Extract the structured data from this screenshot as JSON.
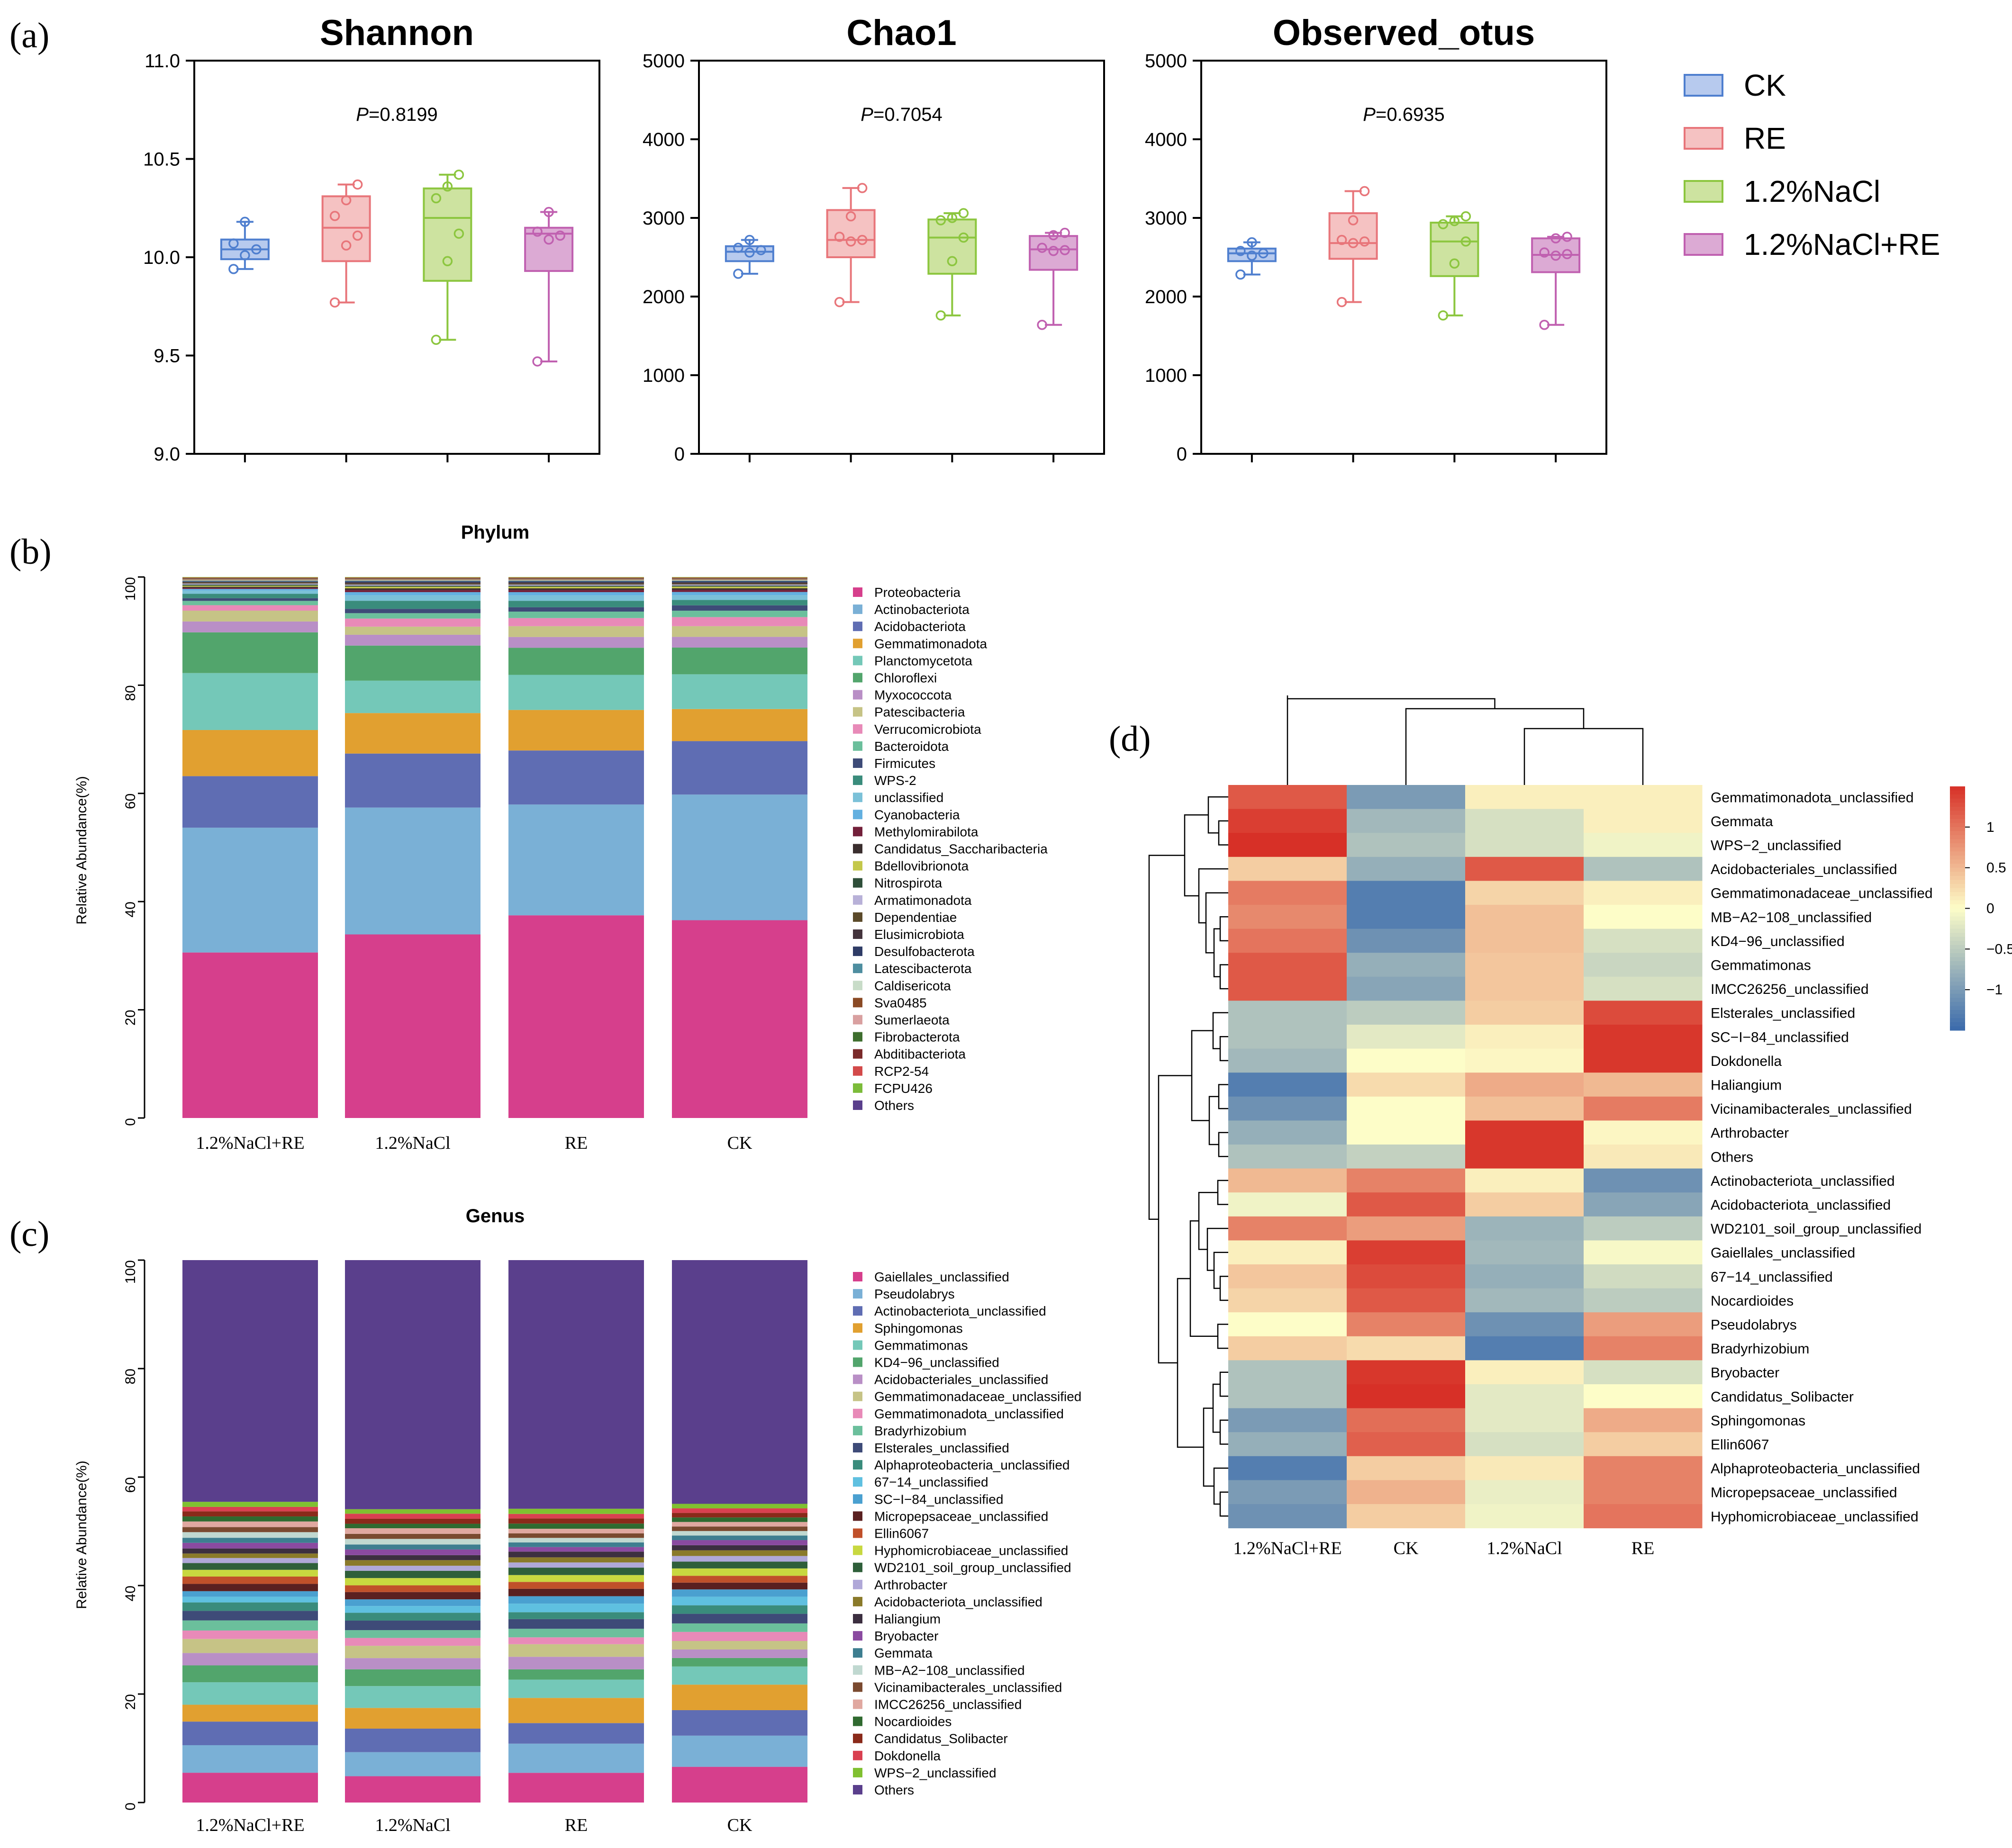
{
  "colors": {
    "groups": {
      "CK": "#4f7fcf",
      "RE": "#e8757a",
      "NaCl": "#8cc63f",
      "NaClRE": "#c060b0"
    },
    "groups_fill": {
      "CK": "#b7caee",
      "RE": "#f5c2c2",
      "NaCl": "#cde3a0",
      "NaClRE": "#dcaad4"
    },
    "phylum": [
      "#d63f8c",
      "#7ab0d6",
      "#5f6db3",
      "#e1a030",
      "#74c8b8",
      "#52a56c",
      "#b98fc6",
      "#c6c386",
      "#e88ab8",
      "#6bbf9c",
      "#3e4b78",
      "#3a8c7c",
      "#7bc1d8",
      "#63b0e0",
      "#73203a",
      "#3a2e2e",
      "#c4c84a",
      "#2f4f3a",
      "#b8b1d8",
      "#5b4a2a",
      "#44343d",
      "#2f3c66",
      "#4e8ea0",
      "#c8dcc8",
      "#8a4a25",
      "#d9a0a0",
      "#3e6e2e",
      "#7a2a2a",
      "#d34a4a",
      "#7cbc3a",
      "#5a3f8c"
    ],
    "genus": [
      "#d63f8c",
      "#7ab0d6",
      "#5f6db3",
      "#e1a030",
      "#74c8b8",
      "#52a56c",
      "#b98fc6",
      "#c6c386",
      "#e88ab8",
      "#6bbf9c",
      "#3e4b78",
      "#3a8c7c",
      "#5fc0e0",
      "#4aa0d0",
      "#5a2020",
      "#c0502a",
      "#c8d840",
      "#2f5f3a",
      "#b0a8d8",
      "#8a7a2a",
      "#3c2f40",
      "#8a4aa0",
      "#3e7e90",
      "#c0d8d0",
      "#7a4a30",
      "#e0a8a0",
      "#306a30",
      "#8a2a1a",
      "#d94050",
      "#80c030",
      "#5a3f8c"
    ],
    "heatmap": [
      "#3a6aac",
      "#fdfdc8",
      "#d73027"
    ]
  },
  "panel_a": {
    "label": "(a)",
    "p_prefix": "P",
    "groups": [
      "CK",
      "RE",
      "1.2%NaCl",
      "1.2%NaCl+RE"
    ],
    "legend": [
      "CK",
      "RE",
      "1.2%NaCl",
      "1.2%NaCl+RE"
    ],
    "charts": [
      {
        "title": "Shannon",
        "p_value": "=0.8199",
        "ylim": [
          9.0,
          11.0
        ],
        "yticks": [
          "9.0",
          "9.5",
          "10.0",
          "10.5",
          "11.0"
        ],
        "tick_values": [
          9.0,
          9.5,
          10.0,
          10.5,
          11.0
        ],
        "boxes": [
          {
            "min": 9.94,
            "q1": 9.99,
            "median": 10.04,
            "q3": 10.09,
            "max": 10.18,
            "points": [
              9.94,
              10.01,
              10.04,
              10.07,
              10.18
            ]
          },
          {
            "min": 9.77,
            "q1": 9.98,
            "median": 10.15,
            "q3": 10.31,
            "max": 10.37,
            "points": [
              9.77,
              10.06,
              10.11,
              10.21,
              10.29,
              10.37
            ]
          },
          {
            "min": 9.58,
            "q1": 9.88,
            "median": 10.2,
            "q3": 10.35,
            "max": 10.42,
            "points": [
              9.58,
              9.98,
              10.12,
              10.3,
              10.36,
              10.42
            ]
          },
          {
            "min": 9.47,
            "q1": 9.93,
            "median": 10.12,
            "q3": 10.15,
            "max": 10.23,
            "points": [
              9.47,
              10.09,
              10.11,
              10.13,
              10.23
            ]
          }
        ]
      },
      {
        "title": "Chao1",
        "p_value": "=0.7054",
        "ylim": [
          0,
          5000
        ],
        "yticks": [
          "0",
          "1000",
          "2000",
          "3000",
          "4000",
          "5000"
        ],
        "tick_values": [
          0,
          1000,
          2000,
          3000,
          4000,
          5000
        ],
        "boxes": [
          {
            "min": 2290,
            "q1": 2450,
            "median": 2570,
            "q3": 2640,
            "max": 2720,
            "points": [
              2290,
              2560,
              2590,
              2620,
              2720
            ]
          },
          {
            "min": 1930,
            "q1": 2500,
            "median": 2720,
            "q3": 3100,
            "max": 3380,
            "points": [
              1930,
              2700,
              2720,
              2760,
              3020,
              3380
            ]
          },
          {
            "min": 1760,
            "q1": 2290,
            "median": 2750,
            "q3": 2980,
            "max": 3060,
            "points": [
              1760,
              2450,
              2750,
              2970,
              3000,
              3060
            ]
          },
          {
            "min": 1640,
            "q1": 2340,
            "median": 2600,
            "q3": 2770,
            "max": 2810,
            "points": [
              1640,
              2580,
              2590,
              2620,
              2780,
              2810
            ]
          }
        ]
      },
      {
        "title": "Observed_otus",
        "p_value": "=0.6935",
        "ylim": [
          0,
          5000
        ],
        "yticks": [
          "0",
          "1000",
          "2000",
          "3000",
          "4000",
          "5000"
        ],
        "tick_values": [
          0,
          1000,
          2000,
          3000,
          4000,
          5000
        ],
        "boxes": [
          {
            "min": 2280,
            "q1": 2450,
            "median": 2550,
            "q3": 2610,
            "max": 2690,
            "points": [
              2280,
              2520,
              2550,
              2580,
              2690
            ]
          },
          {
            "min": 1930,
            "q1": 2480,
            "median": 2680,
            "q3": 3060,
            "max": 3340,
            "points": [
              1930,
              2680,
              2700,
              2720,
              2970,
              3340
            ]
          },
          {
            "min": 1760,
            "q1": 2260,
            "median": 2700,
            "q3": 2940,
            "max": 3020,
            "points": [
              1760,
              2420,
              2700,
              2920,
              2960,
              3020
            ]
          },
          {
            "min": 1640,
            "q1": 2310,
            "median": 2530,
            "q3": 2740,
            "max": 2760,
            "points": [
              1640,
              2520,
              2540,
              2560,
              2740,
              2760
            ]
          }
        ]
      }
    ]
  },
  "panel_b": {
    "label": "(b)",
    "title": "Phylum",
    "ylabel": "Relative Abundance(%)",
    "yticks": [
      "0",
      "20",
      "40",
      "60",
      "80",
      "100"
    ],
    "tick_values": [
      0,
      20,
      40,
      60,
      80,
      100
    ],
    "categories": [
      "1.2%NaCl+RE",
      "1.2%NaCl",
      "RE",
      "CK"
    ],
    "legend": [
      "Proteobacteria",
      "Actinobacteriota",
      "Acidobacteriota",
      "Gemmatimonadota",
      "Planctomycetota",
      "Chloroflexi",
      "Myxococcota",
      "Patescibacteria",
      "Verrucomicrobiota",
      "Bacteroidota",
      "Firmicutes",
      "WPS-2",
      "unclassified",
      "Cyanobacteria",
      "Methylomirabilota",
      "Candidatus_Saccharibacteria",
      "Bdellovibrionota",
      "Nitrospirota",
      "Armatimonadota",
      "Dependentiae",
      "Elusimicrobiota",
      "Desulfobacterota",
      "Latescibacterota",
      "Caldisericota",
      "Sva0485",
      "Sumerlaeota",
      "Fibrobacterota",
      "Abditibacteriota",
      "RCP2-54",
      "FCPU426",
      "Others"
    ],
    "stacks": [
      [
        30.5,
        23.0,
        9.5,
        8.5,
        10.5,
        7.5,
        2.0,
        2.0,
        1.0,
        0.8,
        0.5,
        0.8,
        0.6,
        0.3,
        0.2,
        0.2,
        0.2,
        0.2,
        0.2,
        0.2,
        0.1,
        0.1,
        0.1,
        0.1,
        0.1,
        0.1,
        0.1,
        0.1,
        0.1,
        0.1,
        0.0
      ],
      [
        34.0,
        23.5,
        10.0,
        7.5,
        6.0,
        6.5,
        2.0,
        1.5,
        1.5,
        1.0,
        0.8,
        1.5,
        1.0,
        0.6,
        0.4,
        0.3,
        0.3,
        0.2,
        0.2,
        0.2,
        0.2,
        0.2,
        0.1,
        0.1,
        0.1,
        0.1,
        0.1,
        0.1,
        0.1,
        0.1,
        0.0
      ],
      [
        37.5,
        20.5,
        10.0,
        7.5,
        6.5,
        5.0,
        2.0,
        2.0,
        1.5,
        1.2,
        0.8,
        1.2,
        1.0,
        0.6,
        0.4,
        0.3,
        0.3,
        0.2,
        0.2,
        0.2,
        0.2,
        0.2,
        0.1,
        0.1,
        0.1,
        0.1,
        0.1,
        0.1,
        0.1,
        0.1,
        0.0
      ],
      [
        37.0,
        23.5,
        10.0,
        6.0,
        6.5,
        5.0,
        2.0,
        2.0,
        1.7,
        1.2,
        1.0,
        1.0,
        0.9,
        0.6,
        0.4,
        0.3,
        0.3,
        0.2,
        0.2,
        0.2,
        0.2,
        0.2,
        0.1,
        0.1,
        0.1,
        0.1,
        0.1,
        0.1,
        0.1,
        0.1,
        0.0
      ]
    ]
  },
  "panel_c": {
    "label": "(c)",
    "title": "Genus",
    "ylabel": "Relative Abundance(%)",
    "yticks": [
      "0",
      "20",
      "40",
      "60",
      "80",
      "100"
    ],
    "tick_values": [
      0,
      20,
      40,
      60,
      80,
      100
    ],
    "categories": [
      "1.2%NaCl+RE",
      "1.2%NaCl",
      "RE",
      "CK"
    ],
    "legend": [
      "Gaiellales_unclassified",
      "Pseudolabrys",
      "Actinobacteriota_unclassified",
      "Sphingomonas",
      "Gemmatimonas",
      "KD4−96_unclassified",
      "Acidobacteriales_unclassified",
      "Gemmatimonadaceae_unclassified",
      "Gemmatimonadota_unclassified",
      "Bradyrhizobium",
      "Elsterales_unclassified",
      "Alphaproteobacteria_unclassified",
      "67−14_unclassified",
      "SC−I−84_unclassified",
      "Micropepsaceae_unclassified",
      "Ellin6067",
      "Hyphomicrobiaceae_unclassified",
      "WD2101_soil_group_unclassified",
      "Arthrobacter",
      "Acidobacteriota_unclassified",
      "Haliangium",
      "Bryobacter",
      "Gemmata",
      "MB−A2−108_unclassified",
      "Vicinamibacterales_unclassified",
      "IMCC26256_unclassified",
      "Nocardioides",
      "Candidatus_Solibacter",
      "Dokdonella",
      "WPS−2_unclassified",
      "Others"
    ],
    "stacks": [
      [
        5.3,
        4.9,
        4.2,
        3.0,
        4.0,
        3.0,
        2.2,
        2.5,
        1.5,
        1.8,
        1.7,
        1.5,
        1.0,
        1.0,
        1.3,
        1.3,
        1.2,
        1.2,
        0.9,
        0.8,
        0.9,
        1.0,
        0.9,
        1.0,
        0.9,
        1.0,
        0.9,
        0.9,
        0.8,
        0.9,
        43.0
      ],
      [
        4.7,
        4.3,
        4.2,
        3.7,
        3.9,
        3.0,
        2.0,
        2.2,
        1.4,
        1.4,
        1.7,
        1.4,
        1.2,
        1.2,
        1.3,
        1.2,
        1.3,
        1.3,
        0.9,
        1.0,
        0.9,
        1.0,
        0.9,
        1.0,
        0.9,
        1.0,
        0.8,
        0.9,
        0.9,
        0.8,
        44.5
      ],
      [
        5.2,
        5.1,
        3.6,
        4.4,
        3.2,
        1.8,
        2.2,
        2.2,
        1.2,
        1.5,
        1.7,
        1.2,
        1.5,
        1.3,
        1.3,
        1.2,
        1.2,
        1.3,
        0.9,
        0.9,
        1.0,
        0.8,
        0.8,
        0.8,
        0.8,
        0.8,
        0.9,
        0.9,
        0.8,
        0.9,
        43.5
      ],
      [
        6.3,
        5.5,
        4.5,
        4.5,
        3.2,
        1.5,
        1.5,
        1.5,
        1.6,
        1.5,
        1.7,
        1.5,
        1.5,
        1.3,
        1.2,
        1.2,
        1.3,
        1.2,
        1.0,
        1.0,
        0.9,
        0.9,
        0.8,
        0.8,
        0.8,
        0.8,
        0.8,
        0.8,
        0.8,
        0.8,
        43.0
      ]
    ]
  },
  "panel_d": {
    "label": "(d)",
    "columns": [
      "1.2%NaCl+RE",
      "CK",
      "1.2%NaCl",
      "RE"
    ],
    "rows": [
      "Gemmatimonadota_unclassified",
      "Gemmata",
      "WPS−2_unclassified",
      "Acidobacteriales_unclassified",
      "Gemmatimonadaceae_unclassified",
      "MB−A2−108_unclassified",
      "KD4−96_unclassified",
      "Gemmatimonas",
      "IMCC26256_unclassified",
      "Elsterales_unclassified",
      "SC−I−84_unclassified",
      "Dokdonella",
      "Haliangium",
      "Vicinamibacterales_unclassified",
      "Arthrobacter",
      "Others",
      "Actinobacteriota_unclassified",
      "Acidobacteriota_unclassified",
      "WD2101_soil_group_unclassified",
      "Gaiellales_unclassified",
      "67−14_unclassified",
      "Nocardioides",
      "Pseudolabrys",
      "Bradyrhizobium",
      "Bryobacter",
      "Candidatus_Solibacter",
      "Sphingomonas",
      "Ellin6067",
      "Alphaproteobacteria_unclassified",
      "Micropepsaceae_unclassified",
      "Hyphomicrobiaceae_unclassified"
    ],
    "values": [
      [
        1.2,
        -1.0,
        0.1,
        0.1
      ],
      [
        1.4,
        -0.7,
        -0.3,
        0.1
      ],
      [
        1.5,
        -0.6,
        -0.3,
        -0.1
      ],
      [
        0.35,
        -0.8,
        1.2,
        -0.6
      ],
      [
        0.95,
        -1.3,
        0.3,
        0.1
      ],
      [
        0.85,
        -1.3,
        0.45,
        0.0
      ],
      [
        1.0,
        -1.1,
        0.45,
        -0.3
      ],
      [
        1.2,
        -0.8,
        0.4,
        -0.4
      ],
      [
        1.2,
        -0.9,
        0.4,
        -0.3
      ],
      [
        -0.6,
        -0.5,
        0.35,
        1.3
      ],
      [
        -0.6,
        -0.2,
        0.1,
        1.45
      ],
      [
        -0.7,
        0.0,
        0.05,
        1.45
      ],
      [
        -1.3,
        0.25,
        0.6,
        0.5
      ],
      [
        -1.1,
        0.0,
        0.45,
        0.95
      ],
      [
        -0.8,
        0.0,
        1.45,
        0.05
      ],
      [
        -0.6,
        -0.45,
        1.45,
        0.15
      ],
      [
        0.5,
        0.9,
        0.1,
        -1.1
      ],
      [
        -0.1,
        1.2,
        0.35,
        -0.9
      ],
      [
        0.9,
        0.7,
        -0.75,
        -0.5
      ],
      [
        0.1,
        1.4,
        -0.7,
        -0.05
      ],
      [
        0.4,
        1.3,
        -0.8,
        -0.35
      ],
      [
        0.3,
        1.2,
        -0.7,
        -0.5
      ],
      [
        0.0,
        0.9,
        -1.1,
        0.7
      ],
      [
        0.35,
        0.25,
        -1.3,
        0.9
      ],
      [
        -0.6,
        1.45,
        0.1,
        -0.3
      ],
      [
        -0.6,
        1.5,
        -0.2,
        0.0
      ],
      [
        -1.0,
        1.05,
        -0.2,
        0.6
      ],
      [
        -0.8,
        1.15,
        -0.3,
        0.35
      ],
      [
        -1.3,
        0.35,
        0.15,
        0.9
      ],
      [
        -1.0,
        0.55,
        -0.15,
        0.9
      ],
      [
        -1.1,
        0.35,
        -0.1,
        1.0
      ]
    ],
    "colorbar_ticks": [
      "1",
      "0.5",
      "0",
      "−0.5",
      "−1"
    ],
    "colorbar_values": [
      1,
      0.5,
      0,
      -0.5,
      -1
    ],
    "vmin": -1.5,
    "vmax": 1.5
  }
}
